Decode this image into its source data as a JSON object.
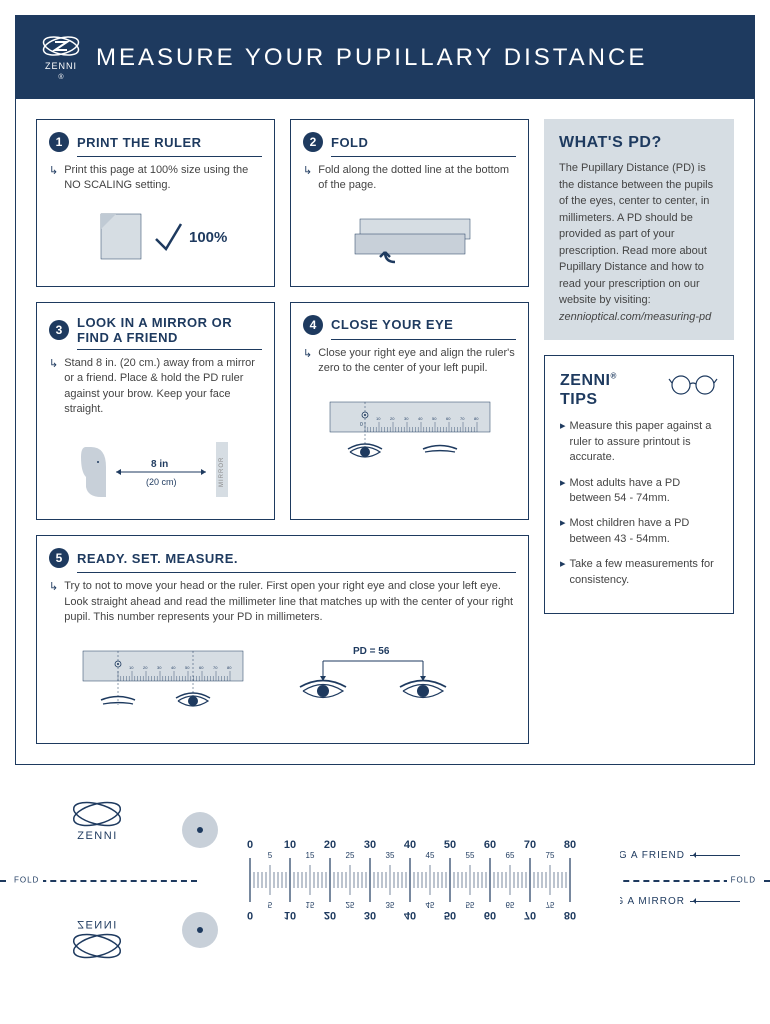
{
  "brand": "ZENNI",
  "main_title": "MEASURE YOUR PUPILLARY DISTANCE",
  "colors": {
    "primary": "#1e3a5f",
    "light_bg": "#d6dde3",
    "illus_fill": "#c8d0d9",
    "text": "#444444"
  },
  "steps": [
    {
      "num": "1",
      "title": "PRINT THE RULER",
      "text": "Print this page at 100% size using the NO SCALING setting.",
      "percent_label": "100%"
    },
    {
      "num": "2",
      "title": "FOLD",
      "text": "Fold along the dotted line at the bottom of the page."
    },
    {
      "num": "3",
      "title": "LOOK IN A MIRROR OR FIND A FRIEND",
      "text": "Stand 8 in. (20 cm.) away from a mirror or a friend. Place & hold the PD ruler against your brow. Keep your face straight.",
      "dist_in": "8 in",
      "dist_cm": "(20 cm)",
      "mirror_label": "MIRROR"
    },
    {
      "num": "4",
      "title": "CLOSE YOUR EYE",
      "text": "Close your right eye and align the ruler's zero to the center of your left pupil."
    },
    {
      "num": "5",
      "title": "READY. SET. MEASURE.",
      "text": "Try to not to move your head or the ruler. First open your right eye and close your left eye. Look straight ahead and read the millimeter line that matches up with the center of your right pupil. This number represents your PD in millimeters.",
      "pd_label": "PD = 56"
    }
  ],
  "whats_pd": {
    "title": "WHAT'S PD?",
    "text": "The Pupillary Distance (PD) is the distance between the pupils of the eyes, center to center, in millimeters. A PD should be provided as part of your prescription. Read more about Pupillary Distance and how to read your prescription on our website by visiting:",
    "link": "zennioptical.com/measuring-pd"
  },
  "tips": {
    "title": "ZENNI",
    "subtitle": "TIPS",
    "items": [
      "Measure this paper against a ruler to assure printout is accurate.",
      "Most adults have a PD between 54 - 74mm.",
      "Most children have a PD between 43 - 54mm.",
      "Take a few measurements for consistency."
    ]
  },
  "ruler": {
    "major_ticks": [
      0,
      10,
      20,
      30,
      40,
      50,
      60,
      70,
      80
    ],
    "minor_ticks": [
      5,
      15,
      25,
      35,
      45,
      55,
      65,
      75
    ],
    "fold_label": "FOLD",
    "friend_label": "USING A FRIEND",
    "mirror_label": "USING A MIRROR"
  }
}
